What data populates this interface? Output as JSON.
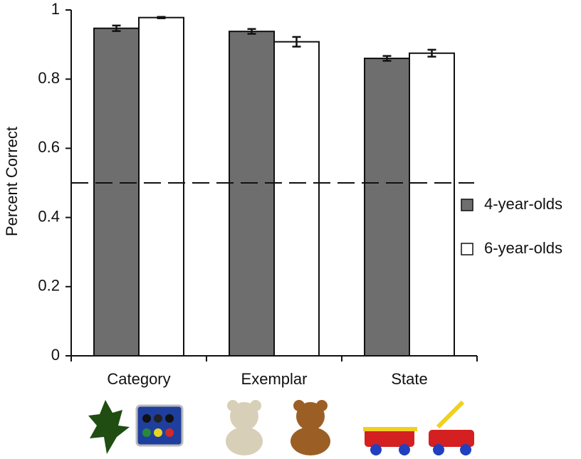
{
  "chart_data": {
    "type": "bar",
    "y_label": "Percent Correct",
    "categories": [
      "Category",
      "Exemplar",
      "State"
    ],
    "series": [
      {
        "name": "4-year-olds",
        "color": "#6e6e6e",
        "values": [
          0.947,
          0.938,
          0.86
        ],
        "errors": [
          0.008,
          0.007,
          0.007
        ]
      },
      {
        "name": "6-year-olds",
        "color": "#ffffff",
        "values": [
          0.978,
          0.908,
          0.875
        ],
        "errors": [
          0.002,
          0.014,
          0.01
        ]
      }
    ],
    "ylim": [
      0,
      1
    ],
    "yticks": [
      0,
      0.2,
      0.4,
      0.6,
      0.8,
      1
    ],
    "reference_line": 0.5,
    "legend": "right"
  }
}
